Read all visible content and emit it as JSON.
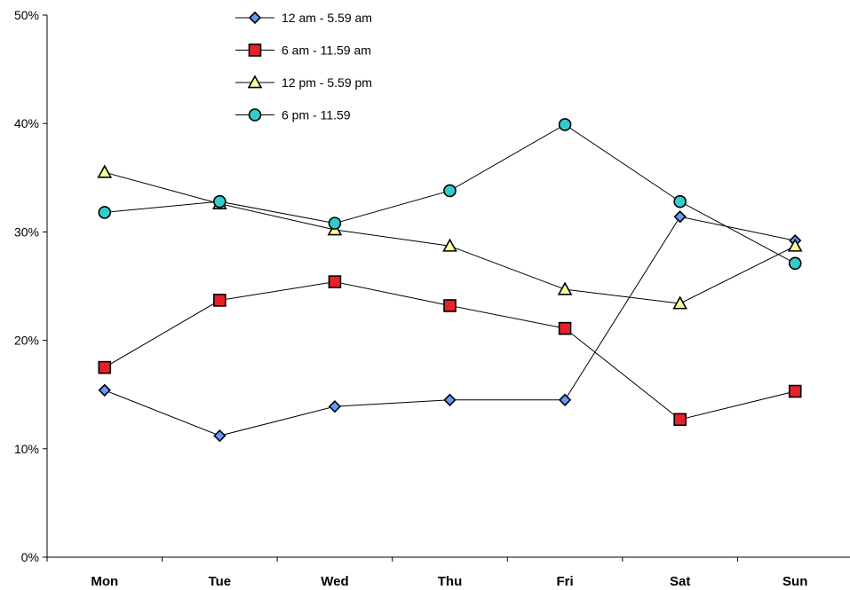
{
  "chart_data": {
    "type": "line",
    "categories": [
      "Mon",
      "Tue",
      "Wed",
      "Thu",
      "Fri",
      "Sat",
      "Sun"
    ],
    "ylim": [
      0,
      0.5
    ],
    "y_ticks": [
      0,
      0.1,
      0.2,
      0.3,
      0.4,
      0.5
    ],
    "y_tick_labels": [
      "0%",
      "10%",
      "20%",
      "30%",
      "40%",
      "50%"
    ],
    "grid": false,
    "legend_position": "top-center",
    "series": [
      {
        "name": "12 am - 5.59 am",
        "marker": "diamond",
        "color": "#6699ff",
        "values": [
          0.154,
          0.112,
          0.139,
          0.145,
          0.145,
          0.314,
          0.292
        ]
      },
      {
        "name": "6 am - 11.59 am",
        "marker": "square",
        "color": "#e8202a",
        "values": [
          0.175,
          0.237,
          0.254,
          0.232,
          0.211,
          0.127,
          0.153
        ]
      },
      {
        "name": "12 pm - 5.59 pm",
        "marker": "triangle",
        "color": "#ffff99",
        "values": [
          0.355,
          0.326,
          0.302,
          0.287,
          0.247,
          0.234,
          0.287
        ]
      },
      {
        "name": "6 pm - 11.59",
        "marker": "circle",
        "color": "#33cccc",
        "values": [
          0.318,
          0.328,
          0.308,
          0.338,
          0.399,
          0.328,
          0.271
        ]
      }
    ]
  }
}
